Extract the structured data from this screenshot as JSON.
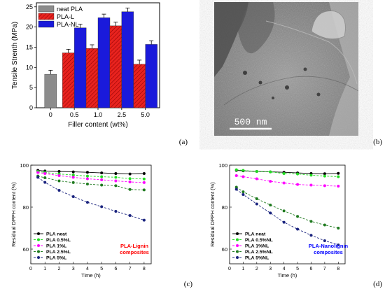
{
  "panels": {
    "a": {
      "letter": "(a)"
    },
    "b": {
      "letter": "(b)",
      "scale_bar": "500 nm"
    },
    "c": {
      "letter": "(c)"
    },
    "d": {
      "letter": "(d)"
    }
  },
  "chart_data": [
    {
      "id": "a",
      "type": "bar",
      "title": "",
      "xlabel": "Filler content (wt%)",
      "ylabel": "Tensile Strenth (MPa)",
      "ylim": [
        0,
        26
      ],
      "legend_position": "top-left",
      "grid": false,
      "categories": [
        "0",
        "0.5",
        "1.0",
        "2.5",
        "5.0"
      ],
      "series": [
        {
          "name": "neat PLA",
          "color": "#8c8c8c",
          "values": [
            8.3,
            null,
            null,
            null,
            null
          ],
          "errors": [
            1.0,
            null,
            null,
            null,
            null
          ]
        },
        {
          "name": "PLA-L",
          "color": "#e8231f",
          "pattern": "hatch",
          "values": [
            null,
            13.6,
            14.7,
            20.3,
            10.8
          ],
          "errors": [
            null,
            0.9,
            0.9,
            0.9,
            1.0
          ]
        },
        {
          "name": "PLA-NL",
          "color": "#1a1adb",
          "values": [
            null,
            19.8,
            22.3,
            23.8,
            15.7
          ],
          "errors": [
            null,
            0.9,
            0.9,
            0.9,
            0.9
          ]
        }
      ]
    },
    {
      "id": "c",
      "type": "line",
      "title": "",
      "xlabel": "Time (h)",
      "ylabel": "Residual DPPH content (%)",
      "xlim": [
        0,
        8.5
      ],
      "ylim": [
        53,
        100
      ],
      "xticks": [
        0,
        1,
        2,
        3,
        4,
        5,
        6,
        7,
        8
      ],
      "yticks": [
        60,
        80,
        100
      ],
      "annotation": [
        "PLA-Lignin",
        "composites"
      ],
      "annotation_color": "#ff0000",
      "legend_position": "bottom-left",
      "grid": false,
      "series": [
        {
          "name": "PLA neat",
          "color": "#000000",
          "dash": "",
          "x": [
            0.5,
            1,
            2,
            3,
            4,
            5,
            6,
            7,
            8
          ],
          "y": [
            97.5,
            97.2,
            97.0,
            96.8,
            96.6,
            96.3,
            96.0,
            95.8,
            96.0
          ]
        },
        {
          "name": "PLA 0.5%L",
          "color": "#22dd22",
          "dash": "3,2",
          "x": [
            0.5,
            1,
            2,
            3,
            4,
            5,
            6,
            7,
            8
          ],
          "y": [
            97.0,
            96.5,
            95.8,
            95.3,
            94.8,
            94.5,
            94.2,
            93.6,
            93.4
          ]
        },
        {
          "name": "PLA 1%L",
          "color": "#ff00ff",
          "dash": "3,2",
          "x": [
            0.5,
            1,
            2,
            3,
            4,
            5,
            6,
            7,
            8
          ],
          "y": [
            96.5,
            96.0,
            95.0,
            94.2,
            93.5,
            93.0,
            92.5,
            92.0,
            91.7
          ]
        },
        {
          "name": "PLA 2.5%L",
          "color": "#1f7a1f",
          "dash": "3,2",
          "x": [
            0.5,
            1,
            2,
            3,
            4,
            5,
            6,
            7,
            8
          ],
          "y": [
            94.8,
            94.0,
            92.5,
            91.7,
            91.0,
            90.5,
            90.2,
            88.4,
            88.2
          ]
        },
        {
          "name": "PLA 5%L",
          "color": "#1a237e",
          "dash": "3,2",
          "x": [
            0.5,
            1,
            2,
            3,
            4,
            5,
            6,
            7,
            8
          ],
          "y": [
            94.2,
            91.8,
            88.0,
            85.0,
            82.3,
            80.2,
            78.0,
            76.0,
            73.8
          ]
        }
      ]
    },
    {
      "id": "d",
      "type": "line",
      "title": "",
      "xlabel": "Time (h)",
      "ylabel": "Residual DPPH content (%)",
      "xlim": [
        0,
        8.5
      ],
      "ylim": [
        53,
        100
      ],
      "xticks": [
        0,
        1,
        2,
        3,
        4,
        5,
        6,
        7,
        8
      ],
      "yticks": [
        60,
        80,
        100
      ],
      "annotation": [
        "PLA-Nanolignin",
        "composites"
      ],
      "annotation_color": "#0000ff",
      "legend_position": "bottom-left",
      "grid": false,
      "series": [
        {
          "name": "PLA neat",
          "color": "#000000",
          "dash": "",
          "x": [
            0.5,
            1,
            2,
            3,
            4,
            5,
            6,
            7,
            8
          ],
          "y": [
            97.5,
            97.3,
            97.0,
            96.8,
            96.6,
            96.3,
            96.0,
            95.9,
            96.1
          ]
        },
        {
          "name": "PLA 0.5%NL",
          "color": "#22dd22",
          "dash": "3,2",
          "x": [
            0.5,
            1,
            2,
            3,
            4,
            5,
            6,
            7,
            8
          ],
          "y": [
            97.8,
            97.5,
            97.0,
            96.8,
            96.0,
            95.8,
            95.2,
            94.8,
            94.5
          ]
        },
        {
          "name": "PLA 1%NL",
          "color": "#ff00ff",
          "dash": "3,2",
          "x": [
            0.5,
            1,
            2,
            3,
            4,
            5,
            6,
            7,
            8
          ],
          "y": [
            95.0,
            94.5,
            93.5,
            92.3,
            91.5,
            90.8,
            90.5,
            90.2,
            90.0
          ]
        },
        {
          "name": "PLA 2.5%NL",
          "color": "#1f7a1f",
          "dash": "3,2",
          "x": [
            0.5,
            1,
            2,
            3,
            4,
            5,
            6,
            7,
            8
          ],
          "y": [
            89.5,
            87.3,
            84.0,
            81.0,
            78.2,
            75.6,
            73.2,
            71.5,
            70.0
          ]
        },
        {
          "name": "PLA 5%NL",
          "color": "#1a237e",
          "dash": "3,2",
          "x": [
            0.5,
            1,
            2,
            3,
            4,
            5,
            6,
            7,
            8
          ],
          "y": [
            88.5,
            86.0,
            81.5,
            77.2,
            72.8,
            69.5,
            66.6,
            64.0,
            62.0
          ]
        }
      ]
    }
  ]
}
